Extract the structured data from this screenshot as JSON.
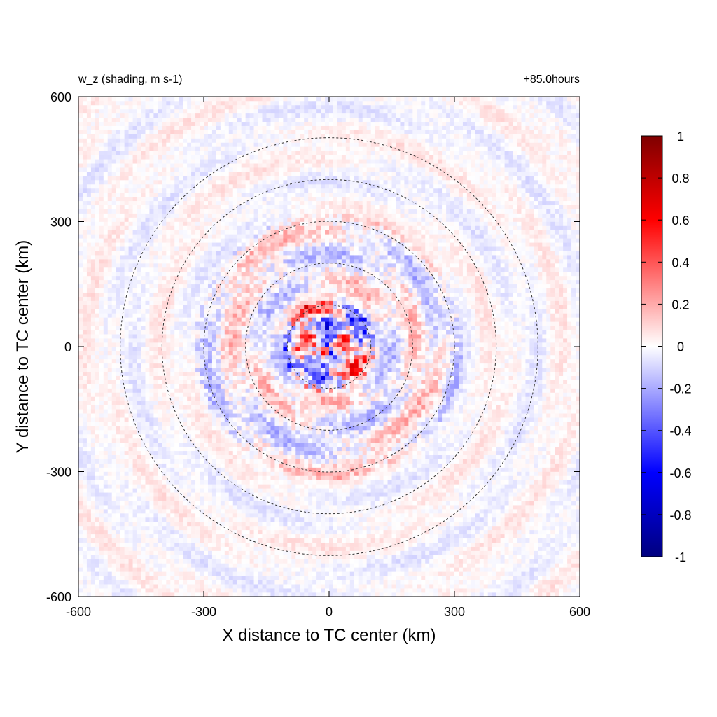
{
  "chart_data": {
    "type": "heatmap",
    "title_left": "w_z (shading, m s-1)",
    "title_right": "+85.0hours",
    "xlabel": "X distance to TC center (km)",
    "ylabel": "Y distance to TC center (km)",
    "xlim": [
      -600,
      600
    ],
    "ylim": [
      -600,
      600
    ],
    "xticks": [
      -600,
      -300,
      0,
      300,
      600
    ],
    "yticks": [
      -600,
      -300,
      0,
      300,
      600
    ],
    "xtick_labels": [
      "-600",
      "-300",
      "0",
      "300",
      "600"
    ],
    "ytick_labels": [
      "-600",
      "-300",
      "0",
      "300",
      "600"
    ],
    "range_rings_km": [
      100,
      200,
      300,
      400,
      500
    ],
    "colorbar": {
      "min": -1,
      "max": 1,
      "ticks": [
        1,
        0.8,
        0.6,
        0.4,
        0.2,
        0,
        -0.2,
        -0.4,
        -0.6,
        -0.8,
        -1
      ],
      "tick_labels": [
        "1",
        "0.8",
        "0.6",
        "0.4",
        "0.2",
        "0",
        "-0.2",
        "-0.4",
        "-0.6",
        "-0.8",
        "-1"
      ],
      "colors": [
        "#00007f",
        "#0000ff",
        "#ffffff",
        "#ff0000",
        "#7f0000"
      ]
    },
    "field_description_values": {
      "core_max_abs": 0.7,
      "inner_band_typical": 0.25,
      "outer_band_typical": 0.1
    }
  }
}
